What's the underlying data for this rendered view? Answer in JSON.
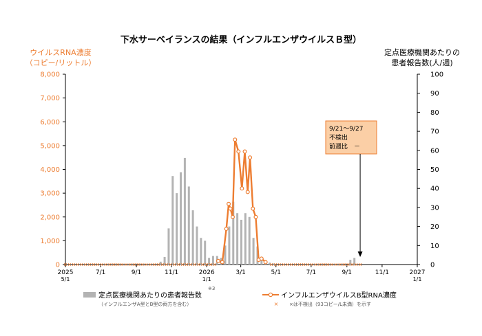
{
  "chart_data": {
    "type": "bar+line",
    "title": "下水サーベイランスの結果（インフルエンザウイルスＢ型）",
    "y_left": {
      "title_line1": "ウイルスRNA濃度",
      "title_line2": "（コピー/リットル）",
      "range": [
        0,
        8000
      ],
      "ticks": [
        0,
        1000,
        2000,
        3000,
        4000,
        5000,
        6000,
        7000,
        8000
      ],
      "tick_labels": [
        "0",
        "1,000",
        "2,000",
        "3,000",
        "4,000",
        "5,000",
        "6,000",
        "7,000",
        "8,000"
      ]
    },
    "y_right": {
      "title_line1": "定点医療機関あたりの",
      "title_line2": "患者報告数(人/週)",
      "range": [
        0,
        100
      ],
      "ticks": [
        0,
        10,
        20,
        30,
        40,
        50,
        60,
        70,
        80,
        90,
        100
      ],
      "tick_labels": [
        "0",
        "10",
        "20",
        "30",
        "40",
        "50",
        "60",
        "70",
        "80",
        "90",
        "100"
      ]
    },
    "x_axis": {
      "range_start": "2025-05-01",
      "range_end": "2027-01-01",
      "ticks": [
        {
          "date": "2025-05-01",
          "line1": "2025",
          "line2": "5/1"
        },
        {
          "date": "2025-07-01",
          "line1": "7/1",
          "line2": ""
        },
        {
          "date": "2025-09-01",
          "line1": "9/1",
          "line2": ""
        },
        {
          "date": "2025-11-01",
          "line1": "11/1",
          "line2": ""
        },
        {
          "date": "2026-01-01",
          "line1": "2026",
          "line2": "1/1"
        },
        {
          "date": "2026-03-01",
          "line1": "3/1",
          "line2": ""
        },
        {
          "date": "2026-05-01",
          "line1": "5/1",
          "line2": ""
        },
        {
          "date": "2026-07-01",
          "line1": "7/1",
          "line2": ""
        },
        {
          "date": "2026-09-01",
          "line1": "9/1",
          "line2": ""
        },
        {
          "date": "2026-11-01",
          "line1": "11/1",
          "line2": ""
        },
        {
          "date": "2027-01-01",
          "line1": "2027",
          "line2": "1/1"
        }
      ]
    },
    "series": [
      {
        "name": "定点医療機関あたりの患者報告数",
        "axis": "right",
        "kind": "bar",
        "color": "#b3b3b3",
        "points": [
          {
            "x": "2025-10-13",
            "y": 1.5
          },
          {
            "x": "2025-10-20",
            "y": 4
          },
          {
            "x": "2025-10-27",
            "y": 19
          },
          {
            "x": "2025-11-03",
            "y": 46.5
          },
          {
            "x": "2025-11-10",
            "y": 37.5
          },
          {
            "x": "2025-11-17",
            "y": 48.5
          },
          {
            "x": "2025-11-24",
            "y": 56
          },
          {
            "x": "2025-12-01",
            "y": 41
          },
          {
            "x": "2025-12-08",
            "y": 28.5
          },
          {
            "x": "2025-12-15",
            "y": 20
          },
          {
            "x": "2025-12-22",
            "y": 14
          },
          {
            "x": "2025-12-29",
            "y": 12.5
          },
          {
            "x": "2026-01-05",
            "y": 3.5
          },
          {
            "x": "2026-01-12",
            "y": 4.5
          },
          {
            "x": "2026-01-19",
            "y": 4.5
          },
          {
            "x": "2026-01-26",
            "y": 3.5
          },
          {
            "x": "2026-02-02",
            "y": 10
          },
          {
            "x": "2026-02-09",
            "y": 20
          },
          {
            "x": "2026-02-16",
            "y": 33
          },
          {
            "x": "2026-02-23",
            "y": 27
          },
          {
            "x": "2026-03-02",
            "y": 23.5
          },
          {
            "x": "2026-03-09",
            "y": 27
          },
          {
            "x": "2026-03-16",
            "y": 25
          },
          {
            "x": "2026-03-23",
            "y": 14
          },
          {
            "x": "2026-03-30",
            "y": 9.5
          },
          {
            "x": "2026-04-06",
            "y": 3
          },
          {
            "x": "2026-04-13",
            "y": 2
          },
          {
            "x": "2026-04-20",
            "y": 1
          },
          {
            "x": "2026-04-27",
            "y": 0.5
          },
          {
            "x": "2026-09-07",
            "y": 2.5
          },
          {
            "x": "2026-09-14",
            "y": 3.5
          }
        ]
      },
      {
        "name": "インフルエンザウイルスB型RNA濃度",
        "axis": "left",
        "kind": "line",
        "color": "#ed7d31",
        "points": [
          {
            "x": "2026-01-21",
            "y": 150
          },
          {
            "x": "2026-01-28",
            "y": 100
          },
          {
            "x": "2026-02-04",
            "y": 1500
          },
          {
            "x": "2026-02-08",
            "y": 2550
          },
          {
            "x": "2026-02-11",
            "y": 2350
          },
          {
            "x": "2026-02-15",
            "y": 2000
          },
          {
            "x": "2026-02-19",
            "y": 5250
          },
          {
            "x": "2026-02-25",
            "y": 4750
          },
          {
            "x": "2026-03-03",
            "y": 3200
          },
          {
            "x": "2026-03-08",
            "y": 4750
          },
          {
            "x": "2026-03-13",
            "y": 3050
          },
          {
            "x": "2026-03-17",
            "y": 4500
          },
          {
            "x": "2026-03-22",
            "y": 2350
          },
          {
            "x": "2026-03-27",
            "y": 2000
          },
          {
            "x": "2026-04-01",
            "y": 200
          },
          {
            "x": "2026-04-06",
            "y": 250
          },
          {
            "x": "2026-04-13",
            "y": 100
          }
        ]
      }
    ],
    "not_detected_marker": {
      "symbol": "×",
      "color": "#ed7d31"
    },
    "annotation": {
      "line1": "9/21～9/27",
      "line2": "不検出",
      "line3": "前週比　－",
      "points_to": "2026-09-24",
      "box_color": "#fbcfa6",
      "border_color": "#ed7d31"
    },
    "footnote_mark": "※3",
    "legend": [
      {
        "label": "定点医療機関あたりの患者報告数",
        "note": "（インフルエンザA型とB型の両方を含む）"
      },
      {
        "label": "インフルエンザウイルスB型RNA濃度",
        "note": "×は不検出（93コピー/L未満）を示す"
      }
    ]
  }
}
